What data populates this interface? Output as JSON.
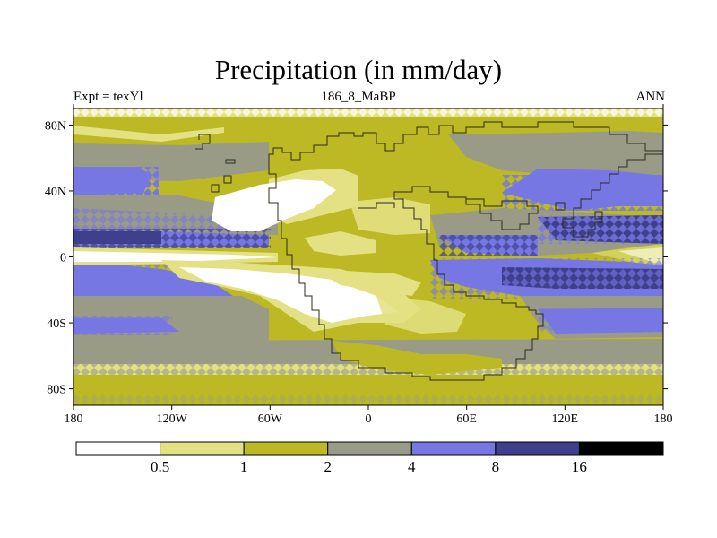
{
  "title": "Precipitation (in mm/day)",
  "left_label": "Expt = texYl",
  "center_label": "186_8_MaBP",
  "right_label": "ANN",
  "colors": {
    "c0": "#ffffff",
    "c1": "#e3e183",
    "c2": "#bcb924",
    "c3": "#9a9b87",
    "c4": "#7677e3",
    "c5": "#3e3f8d",
    "c6": "#000000",
    "coast": "#2b2b1c"
  },
  "map": {
    "lon_ticks": [
      "180",
      "120W",
      "60W",
      "0",
      "60E",
      "120E",
      "180"
    ],
    "lat_ticks": [
      "80N",
      "40N",
      "0",
      "40S",
      "80S"
    ],
    "lat_values": [
      80,
      40,
      0,
      -40,
      -80
    ]
  },
  "colorbar": {
    "levels": [
      "0.5",
      "1",
      "2",
      "4",
      "8",
      "16"
    ],
    "boxes": [
      "c0",
      "c1",
      "c2",
      "c3",
      "c4",
      "c5",
      "c6"
    ]
  }
}
